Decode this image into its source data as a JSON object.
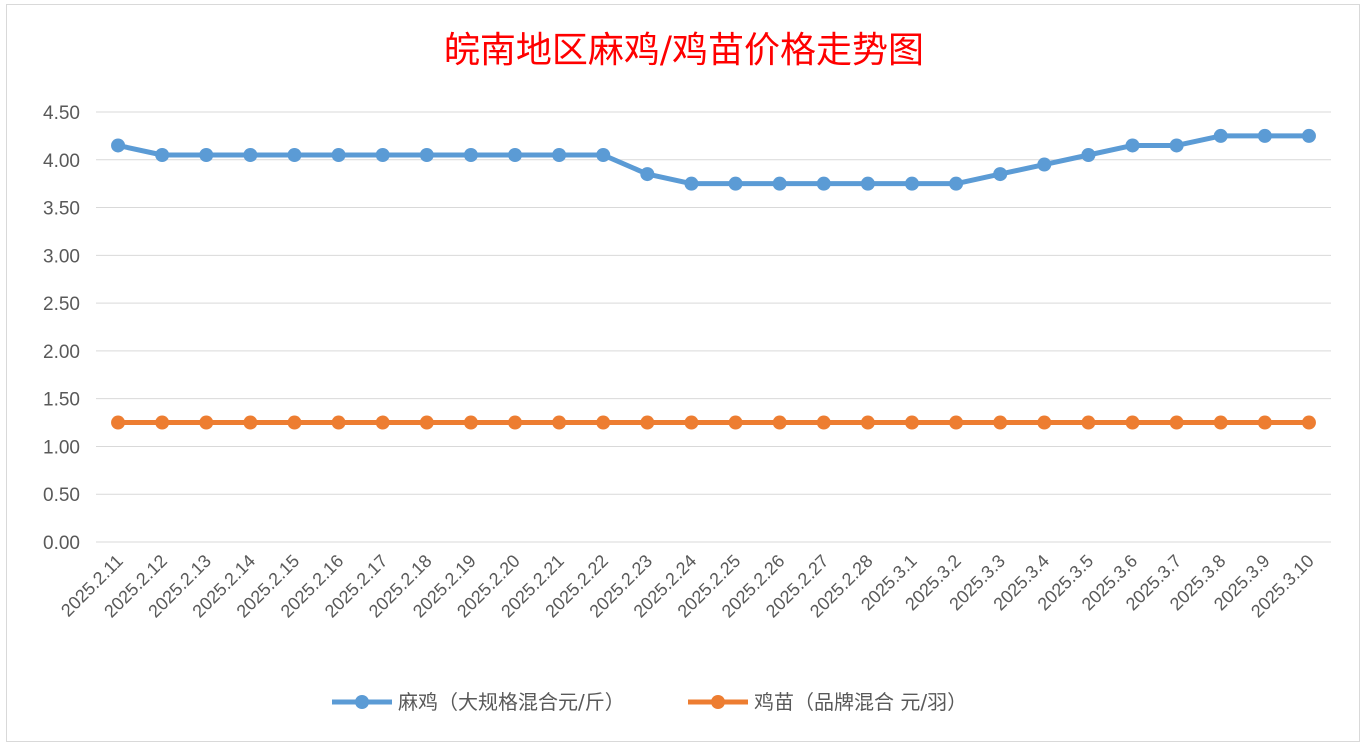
{
  "chart_data": {
    "type": "line",
    "title": "皖南地区麻鸡/鸡苗价格走势图",
    "categories": [
      "2025.2.11",
      "2025.2.12",
      "2025.2.13",
      "2025.2.14",
      "2025.2.15",
      "2025.2.16",
      "2025.2.17",
      "2025.2.18",
      "2025.2.19",
      "2025.2.20",
      "2025.2.21",
      "2025.2.22",
      "2025.2.23",
      "2025.2.24",
      "2025.2.25",
      "2025.2.26",
      "2025.2.27",
      "2025.2.28",
      "2025.3.1",
      "2025.3.2",
      "2025.3.3",
      "2025.3.4",
      "2025.3.5",
      "2025.3.6",
      "2025.3.7",
      "2025.3.8",
      "2025.3.9",
      "2025.3.10"
    ],
    "yticks": [
      "0.00",
      "0.50",
      "1.00",
      "1.50",
      "2.00",
      "2.50",
      "3.00",
      "3.50",
      "4.00",
      "4.50"
    ],
    "ylim": [
      0,
      4.5
    ],
    "grid": true,
    "legend_position": "bottom",
    "series": [
      {
        "name": "麻鸡（大规格混合元/斤）",
        "color": "#5b9bd5",
        "values": [
          4.15,
          4.05,
          4.05,
          4.05,
          4.05,
          4.05,
          4.05,
          4.05,
          4.05,
          4.05,
          4.05,
          4.05,
          3.85,
          3.75,
          3.75,
          3.75,
          3.75,
          3.75,
          3.75,
          3.75,
          3.85,
          3.95,
          4.05,
          4.15,
          4.15,
          4.25,
          4.25,
          4.25
        ]
      },
      {
        "name": "鸡苗（品牌混合 元/羽）",
        "color": "#ed7d31",
        "values": [
          1.25,
          1.25,
          1.25,
          1.25,
          1.25,
          1.25,
          1.25,
          1.25,
          1.25,
          1.25,
          1.25,
          1.25,
          1.25,
          1.25,
          1.25,
          1.25,
          1.25,
          1.25,
          1.25,
          1.25,
          1.25,
          1.25,
          1.25,
          1.25,
          1.25,
          1.25,
          1.25,
          1.25
        ]
      }
    ],
    "title_color": "#ff0000"
  }
}
